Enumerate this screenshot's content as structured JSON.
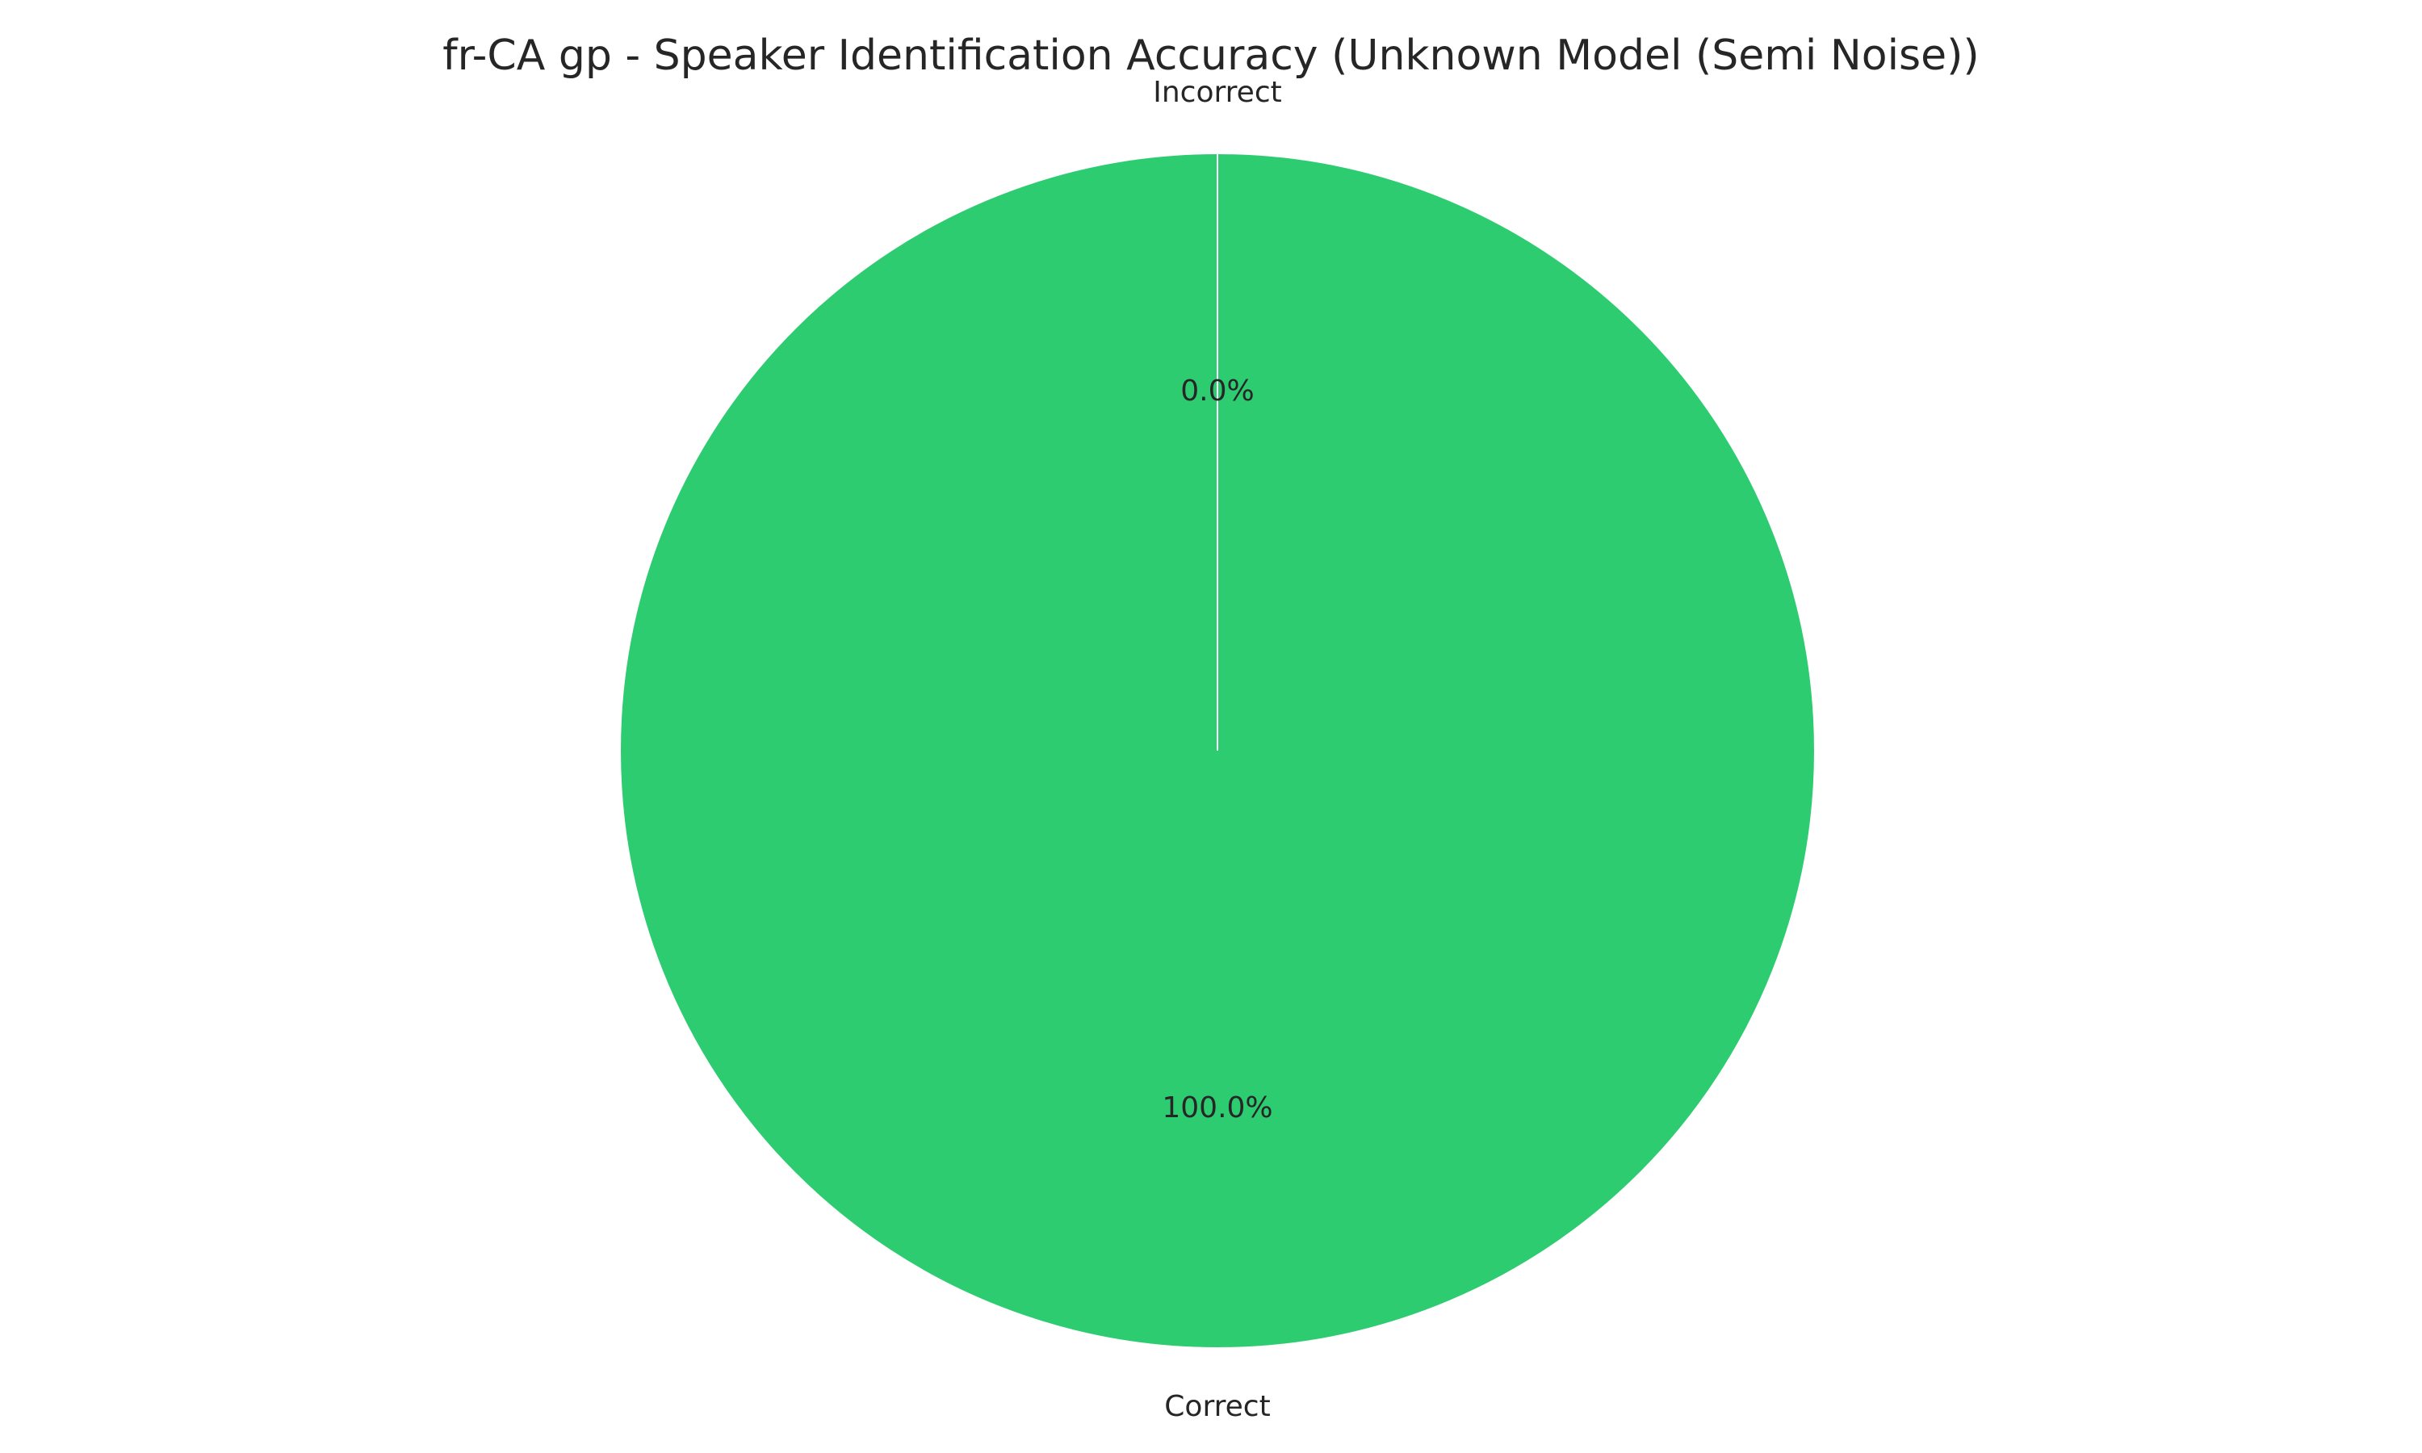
{
  "chart_data": {
    "type": "pie",
    "title": "fr-CA gp - Speaker Identification Accuracy (Unknown Model (Semi Noise))",
    "slices": [
      {
        "label": "Correct",
        "value": 100.0,
        "pct_text": "100.0%",
        "color": "#2ecc71"
      },
      {
        "label": "Incorrect",
        "value": 0.0,
        "pct_text": "0.0%",
        "color": "#e74c3c"
      }
    ],
    "start_angle_deg": 90,
    "direction": "counterclockwise",
    "wedge_edge_color": "#ffffff"
  }
}
